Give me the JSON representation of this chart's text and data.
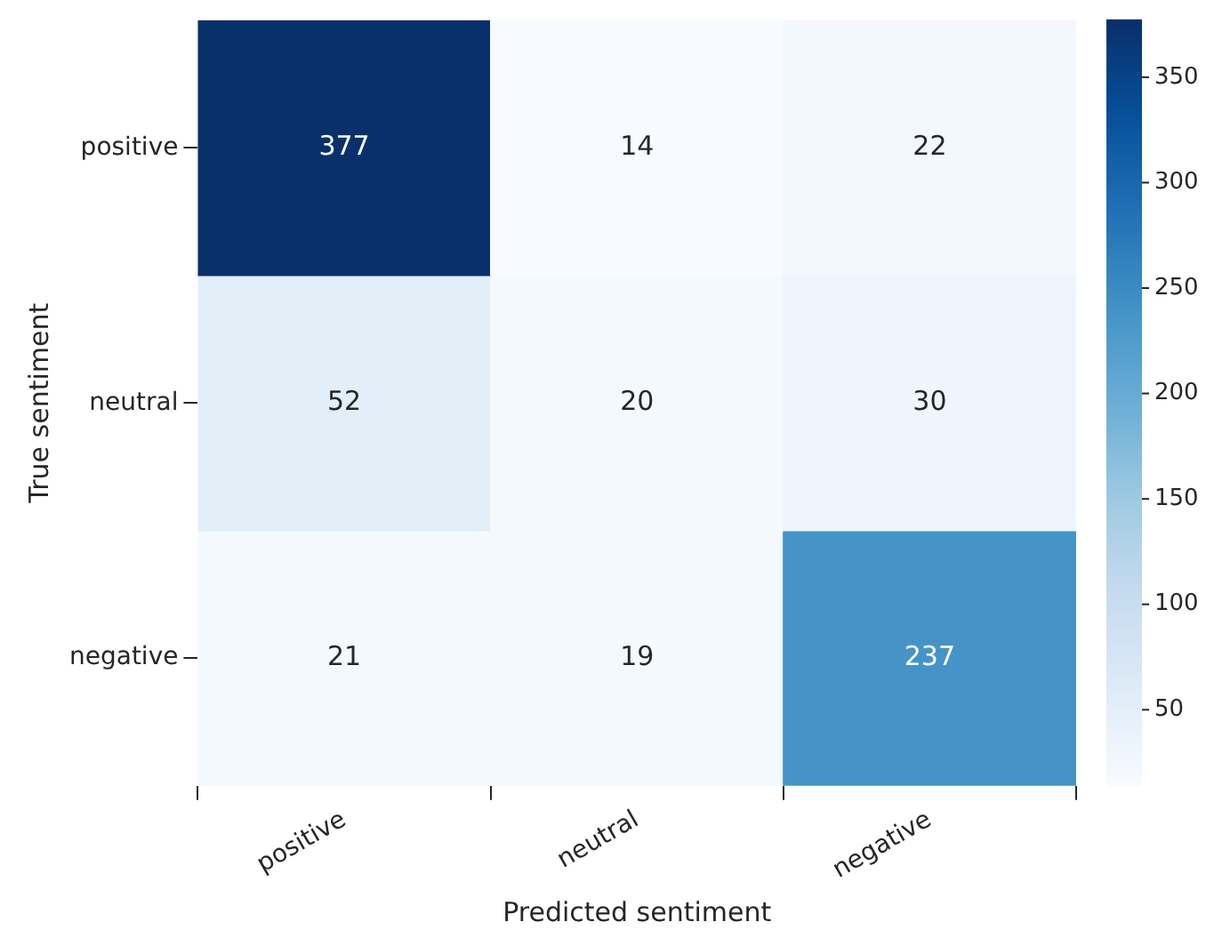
{
  "chart_data": {
    "type": "heatmap",
    "xlabel": "Predicted sentiment",
    "ylabel": "True sentiment",
    "categories": [
      "positive",
      "neutral",
      "negative"
    ],
    "y_categories": [
      "positive",
      "neutral",
      "negative"
    ],
    "cells": [
      [
        377,
        14,
        22
      ],
      [
        52,
        20,
        30
      ],
      [
        21,
        19,
        237
      ]
    ],
    "clim": [
      14,
      377
    ],
    "cticks": [
      50,
      100,
      150,
      200,
      250,
      300,
      350
    ],
    "data_labels": true,
    "grid": false,
    "legend": false
  }
}
